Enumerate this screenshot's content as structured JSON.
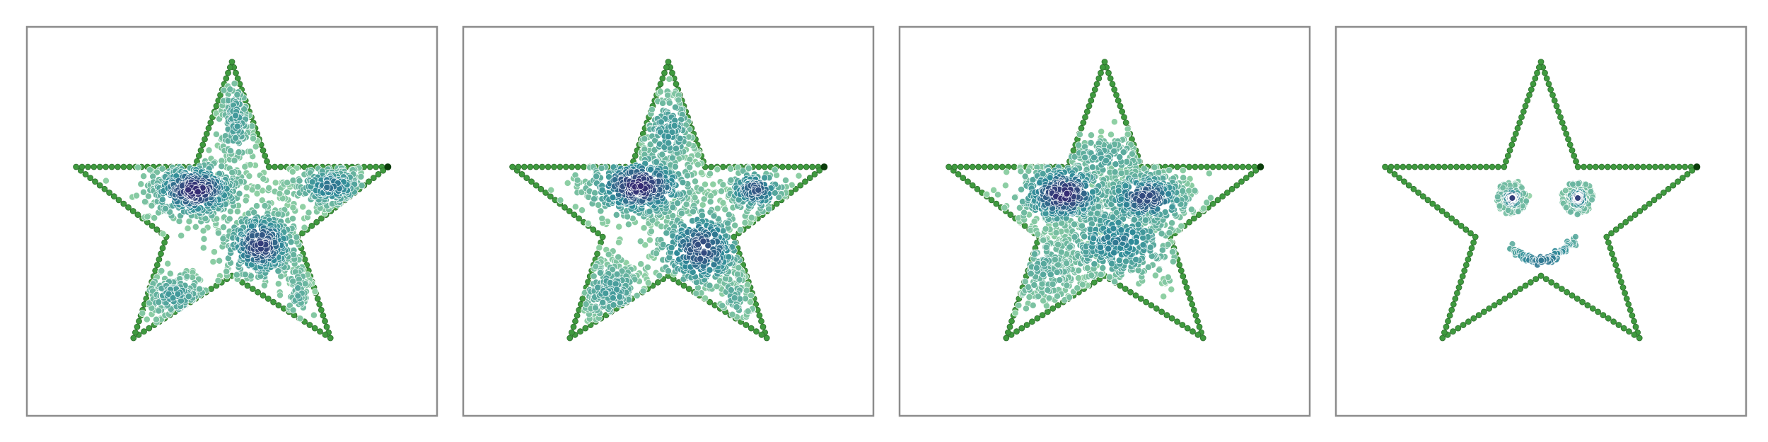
{
  "figure": {
    "panel_count": 4,
    "background": "#ffffff",
    "frame_color": "#8c8c8c"
  },
  "colors": {
    "boundary": "#3f9a3f",
    "boundary_edge": "#2d6e2d",
    "boundary_endpoint": "#0b3d0b",
    "density_low": "#8fd0a4",
    "density_mid": "#2f8c99",
    "density_high": "#352a72",
    "point_edge": "#ffffff"
  },
  "chart_data": [
    {
      "type": "scatter",
      "panel": 1,
      "title": "",
      "xlabel": "",
      "ylabel": "",
      "grid": false,
      "legend": "none",
      "axes_ticks": "hidden",
      "boundary": {
        "shape": "five-pointed star",
        "vertices": [
          [
            0.5,
            0.09
          ],
          [
            0.59,
            0.36
          ],
          [
            0.88,
            0.36
          ],
          [
            0.66,
            0.54
          ],
          [
            0.74,
            0.8
          ],
          [
            0.5,
            0.64
          ],
          [
            0.26,
            0.8
          ],
          [
            0.34,
            0.54
          ],
          [
            0.12,
            0.36
          ],
          [
            0.41,
            0.36
          ]
        ]
      },
      "clusters": [
        {
          "center": [
            0.41,
            0.42
          ],
          "spread": [
            0.06,
            0.04
          ],
          "count": 520,
          "density": 0.95
        },
        {
          "center": [
            0.57,
            0.56
          ],
          "spread": [
            0.05,
            0.05
          ],
          "count": 430,
          "density": 0.85
        },
        {
          "center": [
            0.74,
            0.41
          ],
          "spread": [
            0.05,
            0.03
          ],
          "count": 250,
          "density": 0.6
        },
        {
          "center": [
            0.51,
            0.24
          ],
          "spread": [
            0.025,
            0.07
          ],
          "count": 170,
          "density": 0.35
        },
        {
          "center": [
            0.36,
            0.69
          ],
          "spread": [
            0.05,
            0.035
          ],
          "count": 200,
          "density": 0.35
        },
        {
          "center": [
            0.66,
            0.68
          ],
          "spread": [
            0.02,
            0.05
          ],
          "count": 70,
          "density": 0.25
        }
      ]
    },
    {
      "type": "scatter",
      "panel": 2,
      "title": "",
      "xlabel": "",
      "ylabel": "",
      "grid": false,
      "legend": "none",
      "axes_ticks": "hidden",
      "boundary": {
        "shape": "five-pointed star",
        "vertices": [
          [
            0.5,
            0.09
          ],
          [
            0.59,
            0.36
          ],
          [
            0.88,
            0.36
          ],
          [
            0.66,
            0.54
          ],
          [
            0.74,
            0.8
          ],
          [
            0.5,
            0.64
          ],
          [
            0.26,
            0.8
          ],
          [
            0.34,
            0.54
          ],
          [
            0.12,
            0.36
          ],
          [
            0.41,
            0.36
          ]
        ]
      },
      "clusters": [
        {
          "center": [
            0.43,
            0.41
          ],
          "spread": [
            0.07,
            0.045
          ],
          "count": 480,
          "density": 0.95
        },
        {
          "center": [
            0.58,
            0.57
          ],
          "spread": [
            0.06,
            0.06
          ],
          "count": 420,
          "density": 0.8
        },
        {
          "center": [
            0.71,
            0.42
          ],
          "spread": [
            0.04,
            0.03
          ],
          "count": 190,
          "density": 0.75
        },
        {
          "center": [
            0.5,
            0.27
          ],
          "spread": [
            0.04,
            0.06
          ],
          "count": 200,
          "density": 0.4
        },
        {
          "center": [
            0.36,
            0.68
          ],
          "spread": [
            0.05,
            0.05
          ],
          "count": 230,
          "density": 0.35
        },
        {
          "center": [
            0.66,
            0.69
          ],
          "spread": [
            0.025,
            0.05
          ],
          "count": 80,
          "density": 0.25
        }
      ]
    },
    {
      "type": "scatter",
      "panel": 3,
      "title": "",
      "xlabel": "",
      "ylabel": "",
      "grid": false,
      "legend": "none",
      "axes_ticks": "hidden",
      "boundary": {
        "shape": "five-pointed star",
        "vertices": [
          [
            0.5,
            0.09
          ],
          [
            0.59,
            0.36
          ],
          [
            0.88,
            0.36
          ],
          [
            0.66,
            0.54
          ],
          [
            0.74,
            0.8
          ],
          [
            0.5,
            0.64
          ],
          [
            0.26,
            0.8
          ],
          [
            0.34,
            0.54
          ],
          [
            0.12,
            0.36
          ],
          [
            0.41,
            0.36
          ]
        ]
      },
      "clusters": [
        {
          "center": [
            0.4,
            0.43
          ],
          "spread": [
            0.06,
            0.045
          ],
          "count": 420,
          "density": 0.95
        },
        {
          "center": [
            0.6,
            0.44
          ],
          "spread": [
            0.06,
            0.04
          ],
          "count": 380,
          "density": 0.8
        },
        {
          "center": [
            0.53,
            0.55
          ],
          "spread": [
            0.08,
            0.06
          ],
          "count": 450,
          "density": 0.55
        },
        {
          "center": [
            0.5,
            0.34
          ],
          "spread": [
            0.07,
            0.04
          ],
          "count": 160,
          "density": 0.3
        },
        {
          "center": [
            0.35,
            0.62
          ],
          "spread": [
            0.06,
            0.06
          ],
          "count": 240,
          "density": 0.25
        }
      ]
    },
    {
      "type": "scatter",
      "panel": 4,
      "title": "",
      "xlabel": "",
      "ylabel": "",
      "grid": false,
      "legend": "none",
      "axes_ticks": "hidden",
      "boundary": {
        "shape": "five-pointed star",
        "vertices": [
          [
            0.5,
            0.09
          ],
          [
            0.59,
            0.36
          ],
          [
            0.88,
            0.36
          ],
          [
            0.66,
            0.54
          ],
          [
            0.74,
            0.8
          ],
          [
            0.5,
            0.64
          ],
          [
            0.26,
            0.8
          ],
          [
            0.34,
            0.54
          ],
          [
            0.12,
            0.36
          ],
          [
            0.41,
            0.36
          ]
        ]
      },
      "smiley": {
        "eye_left_center": [
          0.43,
          0.44
        ],
        "eye_right_center": [
          0.59,
          0.44
        ],
        "eye_ring_radius": 0.034,
        "pupil_count": 120,
        "ring_count": 70,
        "mouth": {
          "from": [
            0.43,
            0.57
          ],
          "to": [
            0.58,
            0.55
          ],
          "sag": 0.04,
          "count": 140
        }
      }
    }
  ]
}
